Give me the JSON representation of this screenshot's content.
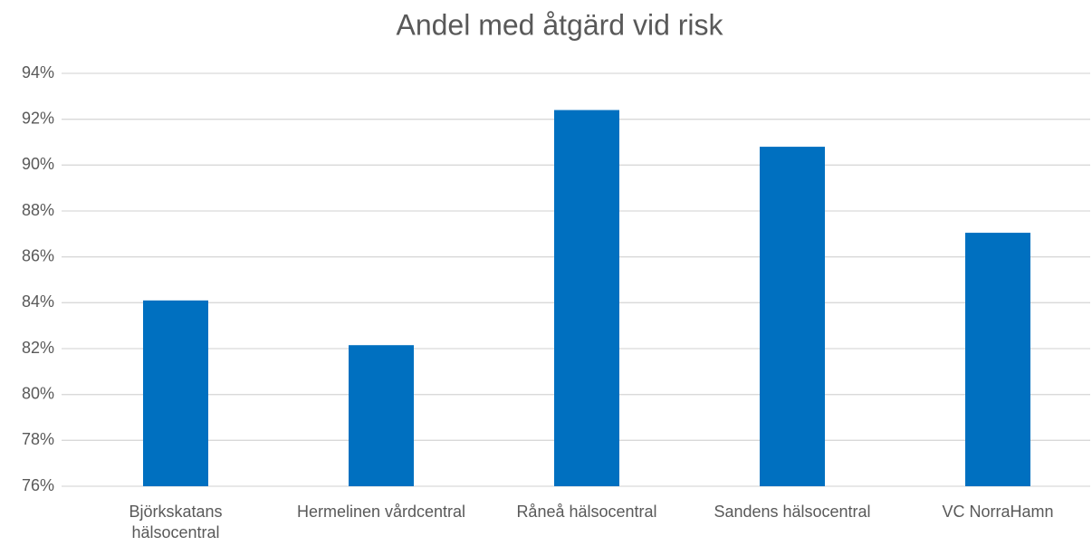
{
  "chart_data": {
    "type": "bar",
    "title": "Andel med åtgärd vid risk",
    "categories": [
      "Björkskatans hälsocentral",
      "Hermelinen vårdcentral",
      "Råneå hälsocentral",
      "Sandens hälsocentral",
      "VC NorraHamn"
    ],
    "values": [
      84.1,
      82.15,
      92.4,
      90.8,
      87.05
    ],
    "color": "#0070c0",
    "ylim": [
      76,
      94
    ],
    "yticks": [
      {
        "value": 76,
        "label": "76%"
      },
      {
        "value": 78,
        "label": "78%"
      },
      {
        "value": 80,
        "label": "80%"
      },
      {
        "value": 82,
        "label": "82%"
      },
      {
        "value": 84,
        "label": "84%"
      },
      {
        "value": 86,
        "label": "86%"
      },
      {
        "value": 88,
        "label": "88%"
      },
      {
        "value": 90,
        "label": "90%"
      },
      {
        "value": 92,
        "label": "92%"
      },
      {
        "value": 94,
        "label": "94%"
      }
    ],
    "grid": true
  }
}
